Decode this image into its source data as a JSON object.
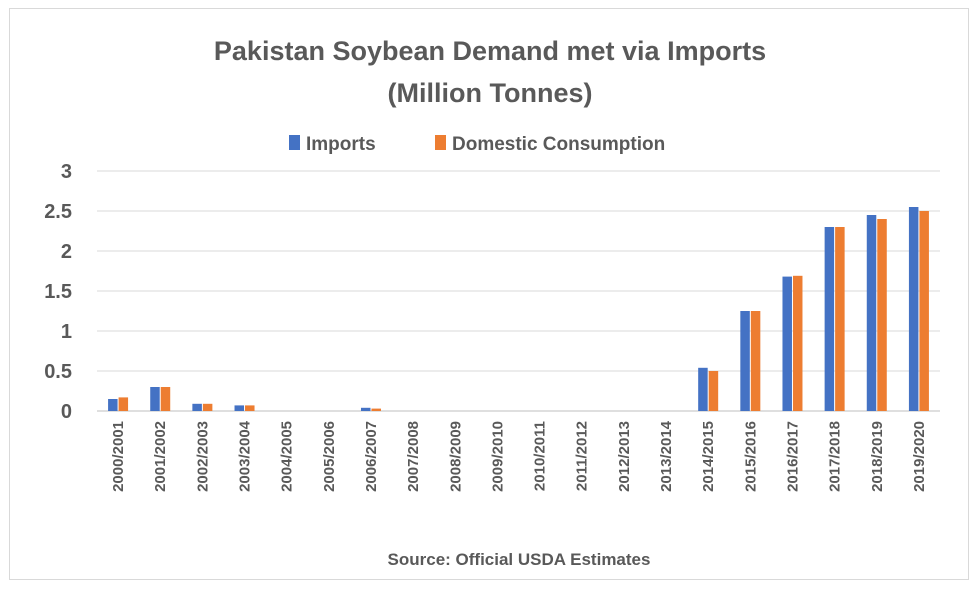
{
  "chart_data": {
    "type": "bar",
    "title": "Pakistan Soybean Demand met via Imports",
    "subtitle": "(Million Tonnes)",
    "categories": [
      "2000/2001",
      "2001/2002",
      "2002/2003",
      "2003/2004",
      "2004/2005",
      "2005/2006",
      "2006/2007",
      "2007/2008",
      "2008/2009",
      "2009/2010",
      "2010/2011",
      "2011/2012",
      "2012/2013",
      "2013/2014",
      "2014/2015",
      "2015/2016",
      "2016/2017",
      "2017/2018",
      "2018/2019",
      "2019/2020"
    ],
    "series": [
      {
        "name": "Imports",
        "color": "#4472c4",
        "values": [
          0.15,
          0.3,
          0.09,
          0.07,
          0,
          0,
          0.04,
          0,
          0,
          0,
          0,
          0,
          0,
          0,
          0.54,
          1.25,
          1.68,
          2.3,
          2.45,
          2.55
        ]
      },
      {
        "name": "Domestic Consumption",
        "color": "#ed7d31",
        "values": [
          0.17,
          0.3,
          0.09,
          0.07,
          0,
          0,
          0.03,
          0,
          0,
          0,
          0,
          0,
          0,
          0,
          0.5,
          1.25,
          1.69,
          2.3,
          2.4,
          2.5
        ]
      }
    ],
    "y_ticks": [
      "0",
      "0.5",
      "1",
      "1.5",
      "2",
      "2.5",
      "3"
    ],
    "ylim": [
      0,
      3
    ],
    "grid": true,
    "legend_position": "top",
    "xlabel": "Source: Official USDA Estimates",
    "ylabel": ""
  }
}
